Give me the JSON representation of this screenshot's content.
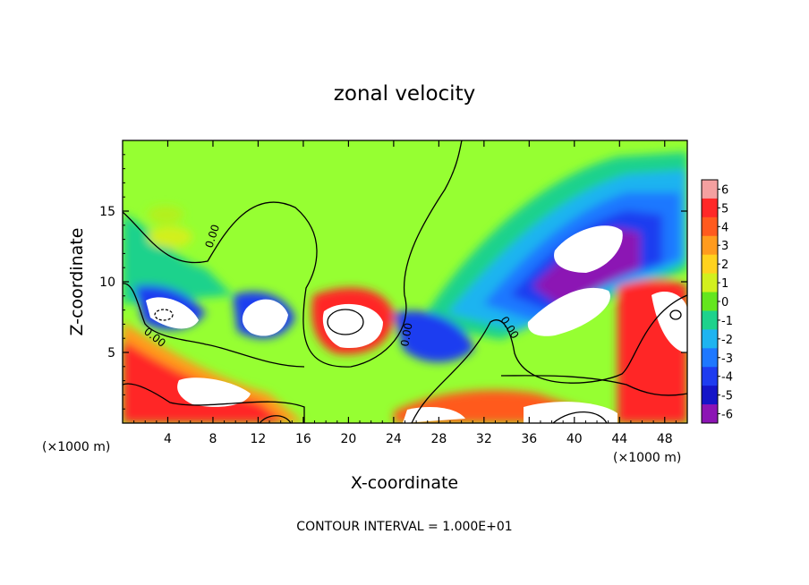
{
  "chart_data": {
    "type": "heatmap",
    "title": "zonal velocity",
    "xlabel": "X-coordinate",
    "ylabel": "Z-coordinate",
    "x_unit": "(×1000 m)",
    "x_unit_right": "(×1000 m)",
    "xlim": [
      0,
      50
    ],
    "ylim": [
      0,
      20
    ],
    "x_ticks": [
      4,
      8,
      12,
      16,
      20,
      24,
      28,
      32,
      36,
      40,
      44,
      48
    ],
    "y_ticks": [
      5,
      10,
      15
    ],
    "colorbar": {
      "levels": [
        6,
        5,
        4,
        3,
        2,
        1,
        0,
        -1,
        -2,
        -3,
        -4,
        -5,
        -6
      ],
      "colors": [
        "#f4a0a0",
        "#ff2828",
        "#ff5a1e",
        "#ff9b1e",
        "#ffd21e",
        "#d2f01e",
        "#64e61e",
        "#1ed28c",
        "#1eb4f0",
        "#1e78ff",
        "#1e3cf0",
        "#1414c8",
        "#8c14b4"
      ],
      "background": "#96ff32"
    },
    "contour_labels": [
      "0.00",
      "0.00",
      "0.00",
      "0.00"
    ],
    "footer": "CONTOUR INTERVAL = 1.000E+01"
  }
}
